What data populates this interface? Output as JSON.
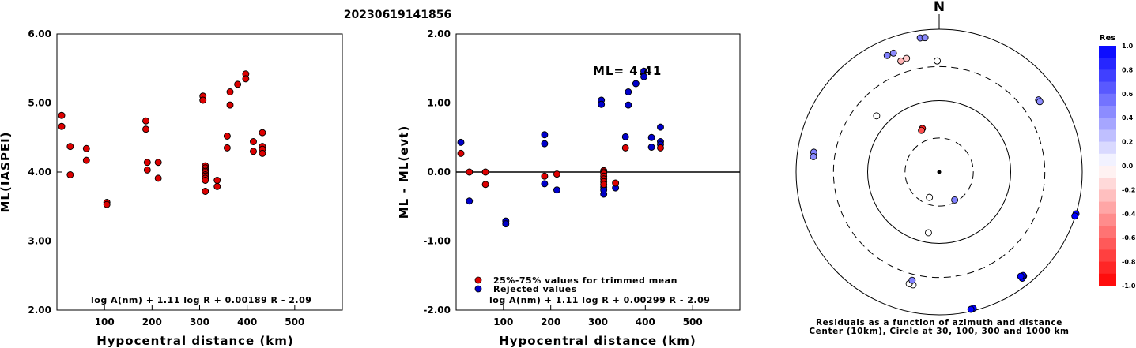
{
  "figure_title": "20230619141856",
  "chart_data": [
    {
      "type": "scatter",
      "ylabel": "ML(IASPEI)",
      "xlabel": "Hypocentral distance (km)",
      "xlim": [
        0,
        600
      ],
      "ylim": [
        2.0,
        6.0
      ],
      "xticks": [
        "100",
        "200",
        "300",
        "400",
        "500"
      ],
      "yticks": [
        "6.00",
        "5.00",
        "4.00",
        "3.00",
        "2.00"
      ],
      "formula": "log A(nm) + 1.11 log R + 0.00189 R - 2.09",
      "point_color": "#dd0000",
      "points": [
        [
          10,
          4.82
        ],
        [
          10,
          4.66
        ],
        [
          28,
          4.37
        ],
        [
          28,
          3.96
        ],
        [
          62,
          4.34
        ],
        [
          62,
          4.17
        ],
        [
          105,
          3.56
        ],
        [
          105,
          3.53
        ],
        [
          187,
          4.74
        ],
        [
          187,
          4.62
        ],
        [
          190,
          4.14
        ],
        [
          190,
          4.03
        ],
        [
          213,
          4.14
        ],
        [
          213,
          3.91
        ],
        [
          307,
          5.1
        ],
        [
          307,
          5.04
        ],
        [
          312,
          4.09
        ],
        [
          312,
          4.06
        ],
        [
          312,
          4.03
        ],
        [
          312,
          4.01
        ],
        [
          312,
          3.99
        ],
        [
          312,
          3.96
        ],
        [
          312,
          3.94
        ],
        [
          312,
          3.91
        ],
        [
          312,
          3.88
        ],
        [
          312,
          3.72
        ],
        [
          337,
          3.88
        ],
        [
          337,
          3.79
        ],
        [
          358,
          4.52
        ],
        [
          358,
          4.35
        ],
        [
          364,
          5.16
        ],
        [
          364,
          4.97
        ],
        [
          380,
          5.27
        ],
        [
          397,
          5.42
        ],
        [
          397,
          5.35
        ],
        [
          413,
          4.44
        ],
        [
          413,
          4.3
        ],
        [
          432,
          4.57
        ],
        [
          432,
          4.37
        ],
        [
          432,
          4.33
        ],
        [
          432,
          4.27
        ]
      ]
    },
    {
      "type": "scatter",
      "ylabel": "ML - ML(evt)",
      "xlabel": "Hypocentral distance (km)",
      "xlim": [
        0,
        600
      ],
      "ylim": [
        -2.0,
        2.0
      ],
      "xticks": [
        "100",
        "200",
        "300",
        "400",
        "500"
      ],
      "yticks": [
        "2.00",
        "1.00",
        "0.00",
        "-1.00",
        "-2.00"
      ],
      "annotation": "ML= 4.41",
      "formula": "log A(nm) + 1.11 log R + 0.00299 R - 2.09",
      "legend": [
        "25%-75% values for trimmed mean",
        "Rejected values"
      ],
      "colors": {
        "trimmed": "#dd0000",
        "rejected": "#0000cc"
      },
      "points_trimmed": [
        [
          10,
          0.27
        ],
        [
          28,
          0.0
        ],
        [
          62,
          0.0
        ],
        [
          62,
          -0.18
        ],
        [
          187,
          -0.06
        ],
        [
          213,
          -0.03
        ],
        [
          312,
          0.02
        ],
        [
          312,
          0.0
        ],
        [
          312,
          -0.02
        ],
        [
          312,
          -0.06
        ],
        [
          312,
          -0.1
        ],
        [
          312,
          -0.14
        ],
        [
          312,
          -0.18
        ],
        [
          337,
          -0.16
        ],
        [
          358,
          0.35
        ],
        [
          432,
          0.35
        ]
      ],
      "points_rejected": [
        [
          10,
          0.43
        ],
        [
          28,
          -0.42
        ],
        [
          105,
          -0.71
        ],
        [
          105,
          -0.75
        ],
        [
          187,
          0.54
        ],
        [
          187,
          0.41
        ],
        [
          187,
          -0.17
        ],
        [
          213,
          -0.26
        ],
        [
          307,
          1.04
        ],
        [
          307,
          0.98
        ],
        [
          312,
          -0.22
        ],
        [
          312,
          -0.32
        ],
        [
          312,
          -0.26
        ],
        [
          337,
          -0.23
        ],
        [
          358,
          0.51
        ],
        [
          364,
          1.16
        ],
        [
          364,
          0.97
        ],
        [
          380,
          1.28
        ],
        [
          397,
          1.46
        ],
        [
          397,
          1.38
        ],
        [
          413,
          0.5
        ],
        [
          413,
          0.36
        ],
        [
          432,
          0.65
        ],
        [
          432,
          0.44
        ],
        [
          432,
          0.4
        ]
      ]
    },
    {
      "type": "scatter",
      "subtype": "polar",
      "north_label": "N",
      "caption_line1": "Residuals as a function of azimuth and distance",
      "caption_line2": "Center (10km), Circle at 30, 100, 300 and 1000 km",
      "rings_km": [
        30,
        100,
        300,
        1000
      ],
      "colorbar": {
        "title": "Res",
        "ticks": [
          "1.0",
          "0.8",
          "0.6",
          "0.4",
          "0.2",
          "0.0",
          "-0.2",
          "-0.4",
          "-0.6",
          "-0.8",
          "-1.0"
        ]
      },
      "stations": [
        {
          "az": 336,
          "dist_km": 612,
          "res": 0.5
        },
        {
          "az": 339,
          "dist_km": 607,
          "res": 0.45
        },
        {
          "az": 352,
          "dist_km": 788,
          "res": 0.5
        },
        {
          "az": 354,
          "dist_km": 780,
          "res": 0.45
        },
        {
          "az": 344,
          "dist_km": 452,
          "res": -0.2
        },
        {
          "az": 341,
          "dist_km": 440,
          "res": -0.3
        },
        {
          "az": 359,
          "dist_km": 360,
          "res": 0.0
        },
        {
          "az": 312,
          "dist_km": 150,
          "res": 0.0
        },
        {
          "az": 339,
          "dist_km": 45,
          "res": -0.9
        },
        {
          "az": 337,
          "dist_km": 43,
          "res": -0.7
        },
        {
          "az": 279,
          "dist_km": 595,
          "res": 0.5
        },
        {
          "az": 277,
          "dist_km": 590,
          "res": 0.45
        },
        {
          "az": 54,
          "dist_km": 523,
          "res": 0.5
        },
        {
          "az": 55,
          "dist_km": 522,
          "res": 0.45
        },
        {
          "az": 107,
          "dist_km": 1000,
          "res": 1.0
        },
        {
          "az": 108,
          "dist_km": 987,
          "res": 1.0
        },
        {
          "az": 142,
          "dist_km": 770,
          "res": 1.0
        },
        {
          "az": 141,
          "dist_km": 750,
          "res": 1.0
        },
        {
          "az": 141,
          "dist_km": 731,
          "res": 1.0
        },
        {
          "az": 142,
          "dist_km": 711,
          "res": 1.0
        },
        {
          "az": 166,
          "dist_km": 928,
          "res": 1.0
        },
        {
          "az": 167,
          "dist_km": 940,
          "res": 1.0
        },
        {
          "az": 193,
          "dist_km": 418,
          "res": 0.0
        },
        {
          "az": 195,
          "dist_km": 415,
          "res": 0.0
        },
        {
          "az": 194,
          "dist_km": 365,
          "res": 0.5
        },
        {
          "az": 151,
          "dist_km": 28,
          "res": 0.5
        },
        {
          "az": 201,
          "dist_km": 24,
          "res": 0.0
        },
        {
          "az": 190,
          "dist_km": 73,
          "res": 0.0
        }
      ]
    }
  ]
}
